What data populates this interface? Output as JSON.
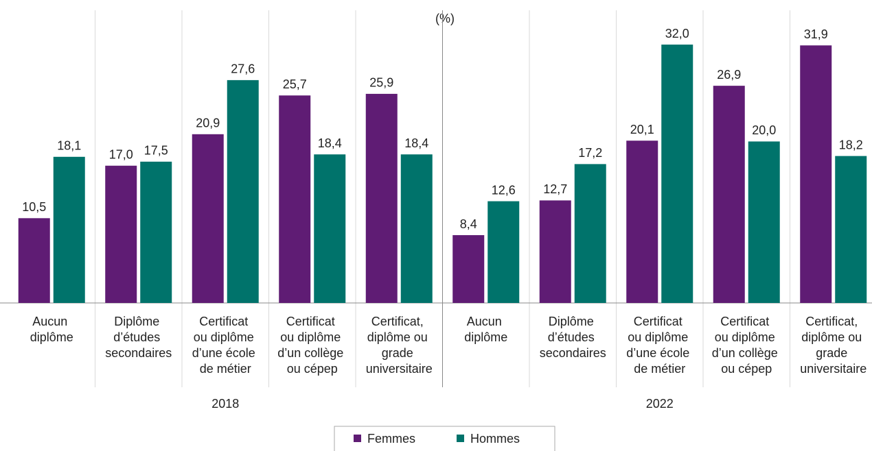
{
  "chart_data": {
    "type": "bar",
    "y_axis_label": "(%)",
    "categories": [
      "Aucun diplôme",
      "Diplôme d’études secondaires",
      "Certificat ou diplôme d’une école de métier",
      "Certificat ou diplôme d’un collège ou cépep",
      "Certificat, diplôme ou grade universitaire",
      "Aucun diplôme",
      "Diplôme d’études secondaires",
      "Certificat ou diplôme d’une école de métier",
      "Certificat ou diplôme d’un collège ou cépep",
      "Certificat, diplôme ou grade universitaire"
    ],
    "group_labels": [
      "2018",
      "2022"
    ],
    "series": [
      {
        "name": "Femmes",
        "color": "#5f1c74",
        "values": [
          10.5,
          17.0,
          20.9,
          25.7,
          25.9,
          8.4,
          12.7,
          20.1,
          26.9,
          31.9
        ],
        "value_labels": [
          "10,5",
          "17,0",
          "20,9",
          "25,7",
          "25,9",
          "8,4",
          "12,7",
          "20,1",
          "26,9",
          "31,9"
        ]
      },
      {
        "name": "Hommes",
        "color": "#00736b",
        "values": [
          18.1,
          17.5,
          27.6,
          18.4,
          18.4,
          12.6,
          17.2,
          32.0,
          20.0,
          18.2
        ],
        "value_labels": [
          "18,1",
          "17,5",
          "27,6",
          "18,4",
          "18,4",
          "12,6",
          "17,2",
          "32,0",
          "20,0",
          "18,2"
        ]
      }
    ],
    "ylim": [
      0,
      34
    ],
    "legend": "bottom"
  }
}
